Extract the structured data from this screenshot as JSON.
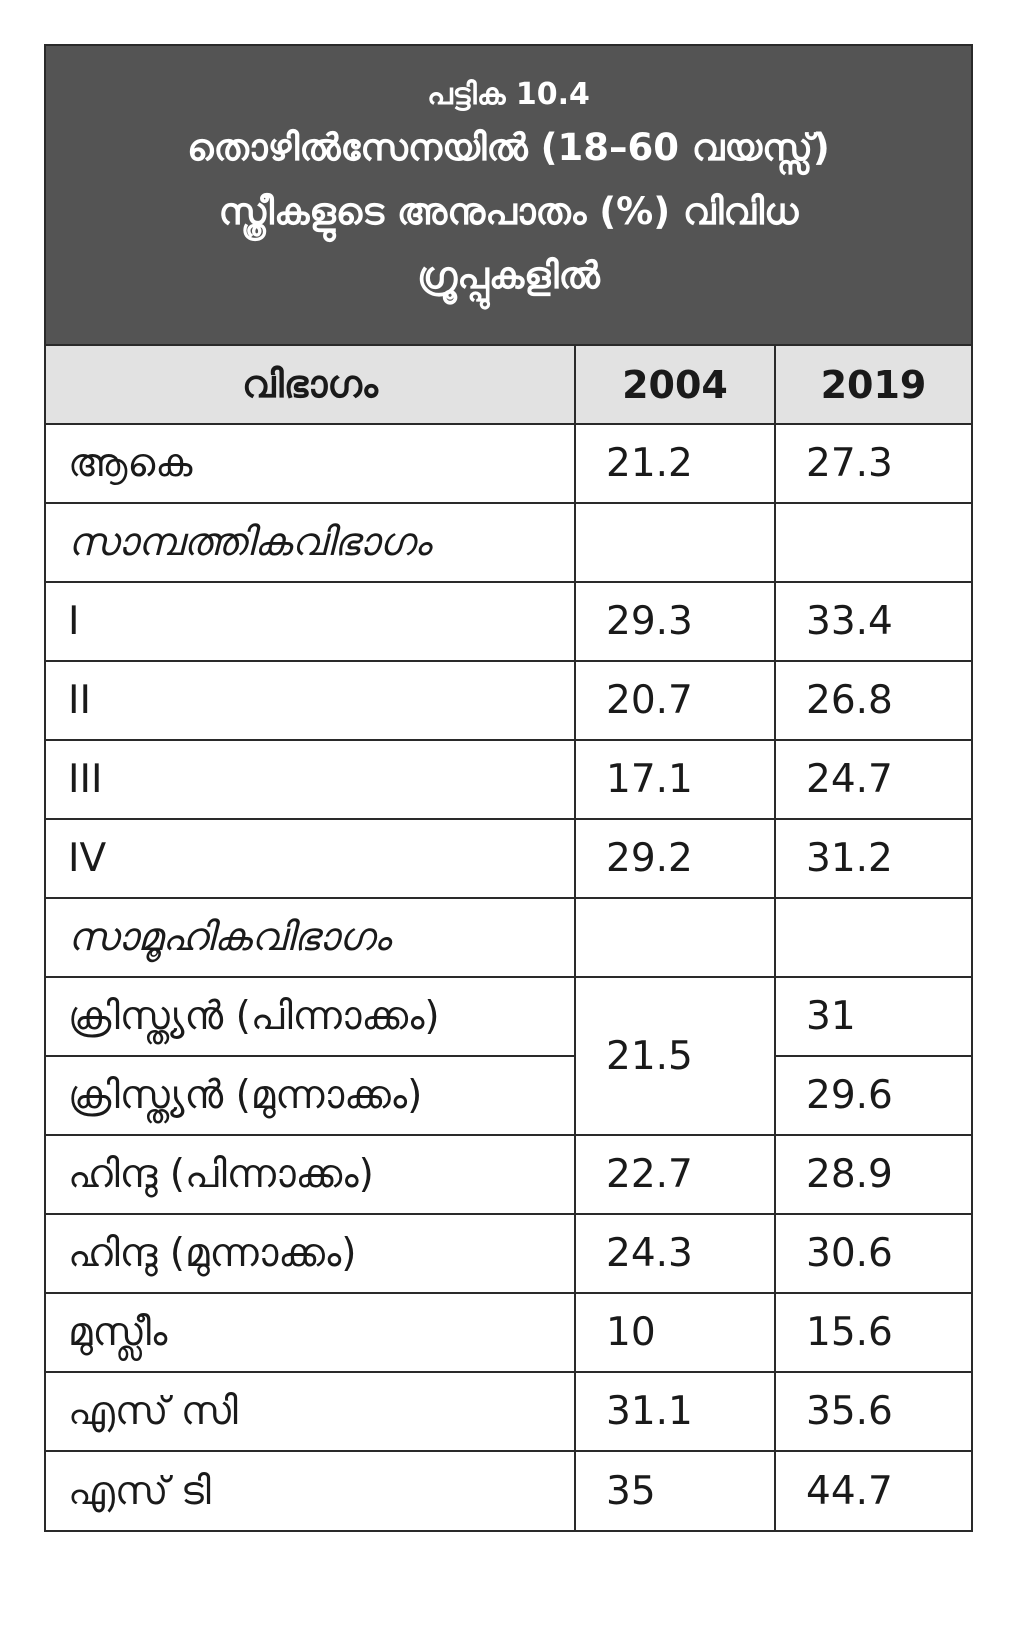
{
  "table_title": {
    "number": "പട്ടിക 10.4",
    "line1": "തൊഴിൽസേനയിൽ (18–60 വയസ്സ്)",
    "line2": "സ്ത്രീകളുടെ അനുപാതം (%) വിവിധ",
    "line3": "ഗ്രൂപ്പുകളിൽ"
  },
  "columns": [
    "വിഭാഗം",
    "2004",
    "2019"
  ],
  "rows": [
    {
      "label": "ആകെ",
      "y2004": "21.2",
      "y2019": "27.3"
    },
    {
      "label": "സാമ്പത്തികവിഭാഗം",
      "y2004": "",
      "y2019": ""
    },
    {
      "label": "I",
      "y2004": "29.3",
      "y2019": "33.4"
    },
    {
      "label": "II",
      "y2004": "20.7",
      "y2019": "26.8"
    },
    {
      "label": "III",
      "y2004": "17.1",
      "y2019": "24.7"
    },
    {
      "label": "IV",
      "y2004": "29.2",
      "y2019": "31.2"
    },
    {
      "label": "സാമൂഹികവിഭാഗം",
      "y2004": "",
      "y2019": ""
    },
    {
      "label": "ക്രിസ്ത്യൻ (പിന്നാക്കം)",
      "y2004": "21.5",
      "y2019": "31"
    },
    {
      "label": "ക്രിസ്ത്യൻ (മുന്നാക്കം)",
      "y2004": "",
      "y2019": "29.6"
    },
    {
      "label": "ഹിന്ദു (പിന്നാക്കം)",
      "y2004": "22.7",
      "y2019": "28.9"
    },
    {
      "label": "ഹിന്ദു (മുന്നാക്കം)",
      "y2004": "24.3",
      "y2019": "30.6"
    },
    {
      "label": "മുസ്ലീം",
      "y2004": "10",
      "y2019": "15.6"
    },
    {
      "label": "എസ് സി",
      "y2004": "31.1",
      "y2019": "35.6"
    },
    {
      "label": "എസ് ടി",
      "y2004": "35",
      "y2019": "44.7"
    }
  ],
  "colors": {
    "title_background": "#545454",
    "title_text": "#ffffff",
    "header_background": "#e2e2e2",
    "border": "#2a2a2a"
  }
}
